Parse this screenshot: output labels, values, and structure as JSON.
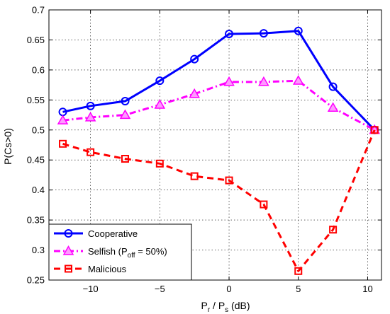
{
  "chart_data": {
    "type": "line",
    "title": "",
    "xlabel": {
      "pre": "P",
      "sub1": "r",
      "mid": " / P",
      "sub2": "s",
      "post": " (dB)"
    },
    "ylabel": "P(Cs>0)",
    "xlim": [
      -13,
      11
    ],
    "ylim": [
      0.25,
      0.7
    ],
    "xticks": [
      -10,
      -5,
      0,
      5,
      10
    ],
    "xtick_labels": [
      "−10",
      "−5",
      "0",
      "5",
      "10"
    ],
    "yticks": [
      0.25,
      0.3,
      0.35,
      0.4,
      0.45,
      0.5,
      0.55,
      0.6,
      0.65,
      0.7
    ],
    "ytick_labels": [
      "0.25",
      "0.3",
      "0.35",
      "0.4",
      "0.45",
      "0.5",
      "0.55",
      "0.6",
      "0.65",
      "0.7"
    ],
    "grid": true,
    "legend_position": "bottom-left",
    "series": [
      {
        "name": "Cooperative",
        "legend": {
          "pre": "Cooperative",
          "sub": "",
          "post": ""
        },
        "color": "#0000ff",
        "line_style": "solid",
        "marker": "circle",
        "x": [
          -12,
          -10,
          -7.5,
          -5,
          -2.5,
          0,
          2.5,
          5,
          7.5,
          10.5
        ],
        "y": [
          0.53,
          0.54,
          0.548,
          0.582,
          0.618,
          0.66,
          0.661,
          0.665,
          0.572,
          0.5
        ]
      },
      {
        "name": "Selfish (Poff = 50%)",
        "legend": {
          "pre": "Selfish (P",
          "sub": "off",
          "post": " = 50%)"
        },
        "color": "#ff00ff",
        "line_style": "dashdot",
        "marker": "triangle",
        "x": [
          -12,
          -10,
          -7.5,
          -5,
          -2.5,
          0,
          2.5,
          5,
          7.5,
          10.5
        ],
        "y": [
          0.516,
          0.521,
          0.525,
          0.542,
          0.56,
          0.58,
          0.58,
          0.582,
          0.537,
          0.5
        ]
      },
      {
        "name": "Malicious",
        "legend": {
          "pre": "Malicious",
          "sub": "",
          "post": ""
        },
        "color": "#ff0000",
        "line_style": "dashed",
        "marker": "square",
        "x": [
          -12,
          -10,
          -7.5,
          -5,
          -2.5,
          0,
          2.5,
          5,
          7.5,
          10.5
        ],
        "y": [
          0.477,
          0.463,
          0.452,
          0.444,
          0.423,
          0.416,
          0.376,
          0.265,
          0.334,
          0.5
        ]
      }
    ]
  }
}
